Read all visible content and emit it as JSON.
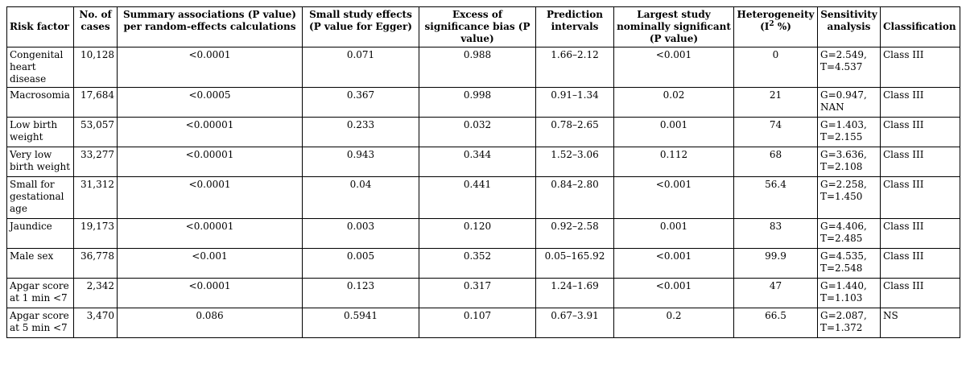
{
  "headers": {
    "risk_factor": "Risk factor",
    "cases": "No. of cases",
    "summary": "Summary associations (P value) per random-effects calculations",
    "small_study": "Small study effects (P value for Egger)",
    "excess": "Excess of significance bias (P value)",
    "prediction": "Prediction intervals",
    "largest": "Largest study nominally significant (P value)",
    "heterogeneity_prefix": "Heterogeneity (I",
    "heterogeneity_sup": "2",
    "heterogeneity_suffix": " %)",
    "sensitivity": "Sensitivity analysis",
    "classification": "Classification"
  },
  "rows": [
    {
      "risk_factor": "Congenital heart disease",
      "cases": "10,128",
      "summary": "<0.0001",
      "small_study": "0.071",
      "excess": "0.988",
      "prediction": "1.66–2.12",
      "largest": "<0.001",
      "heterogeneity": "0",
      "sensitivity": "G=2.549, T=4.537",
      "classification": "Class III"
    },
    {
      "risk_factor": "Macrosomia",
      "cases": "17,684",
      "summary": "<0.0005",
      "small_study": "0.367",
      "excess": "0.998",
      "prediction": "0.91–1.34",
      "largest": "0.02",
      "heterogeneity": "21",
      "sensitivity": "G=0.947, NAN",
      "classification": "Class III"
    },
    {
      "risk_factor": "Low birth weight",
      "cases": "53,057",
      "summary": "<0.00001",
      "small_study": "0.233",
      "excess": "0.032",
      "prediction": "0.78–2.65",
      "largest": "0.001",
      "heterogeneity": "74",
      "sensitivity": "G=1.403, T=2.155",
      "classification": "Class III"
    },
    {
      "risk_factor": "Very low birth weight",
      "cases": "33,277",
      "summary": "<0.00001",
      "small_study": "0.943",
      "excess": "0.344",
      "prediction": "1.52–3.06",
      "largest": "0.112",
      "heterogeneity": "68",
      "sensitivity": "G=3.636, T=2.108",
      "classification": "Class III"
    },
    {
      "risk_factor": "Small for gestational age",
      "cases": "31,312",
      "summary": "<0.0001",
      "small_study": "0.04",
      "excess": "0.441",
      "prediction": "0.84–2.80",
      "largest": "<0.001",
      "heterogeneity": "56.4",
      "sensitivity": "G=2.258, T=1.450",
      "classification": "Class III"
    },
    {
      "risk_factor": "Jaundice",
      "cases": "19,173",
      "summary": "<0.00001",
      "small_study": "0.003",
      "excess": "0.120",
      "prediction": "0.92–2.58",
      "largest": "0.001",
      "heterogeneity": "83",
      "sensitivity": "G=4.406, T=2.485",
      "classification": "Class III"
    },
    {
      "risk_factor": "Male sex",
      "cases": "36,778",
      "summary": "<0.001",
      "small_study": "0.005",
      "excess": "0.352",
      "prediction": "0.05–165.92",
      "largest": "<0.001",
      "heterogeneity": "99.9",
      "sensitivity": "G=4.535, T=2.548",
      "classification": "Class III"
    },
    {
      "risk_factor": "Apgar score at 1 min <7",
      "cases": "2,342",
      "summary": "<0.0001",
      "small_study": "0.123",
      "excess": "0.317",
      "prediction": "1.24–1.69",
      "largest": "<0.001",
      "heterogeneity": "47",
      "sensitivity": "G=1.440, T=1.103",
      "classification": "Class III"
    },
    {
      "risk_factor": "Apgar score at 5 min <7",
      "cases": "3,470",
      "summary": "0.086",
      "small_study": "0.5941",
      "excess": "0.107",
      "prediction": "0.67–3.91",
      "largest": "0.2",
      "heterogeneity": "66.5",
      "sensitivity": "G=2.087, T=1.372",
      "classification": "NS"
    }
  ]
}
